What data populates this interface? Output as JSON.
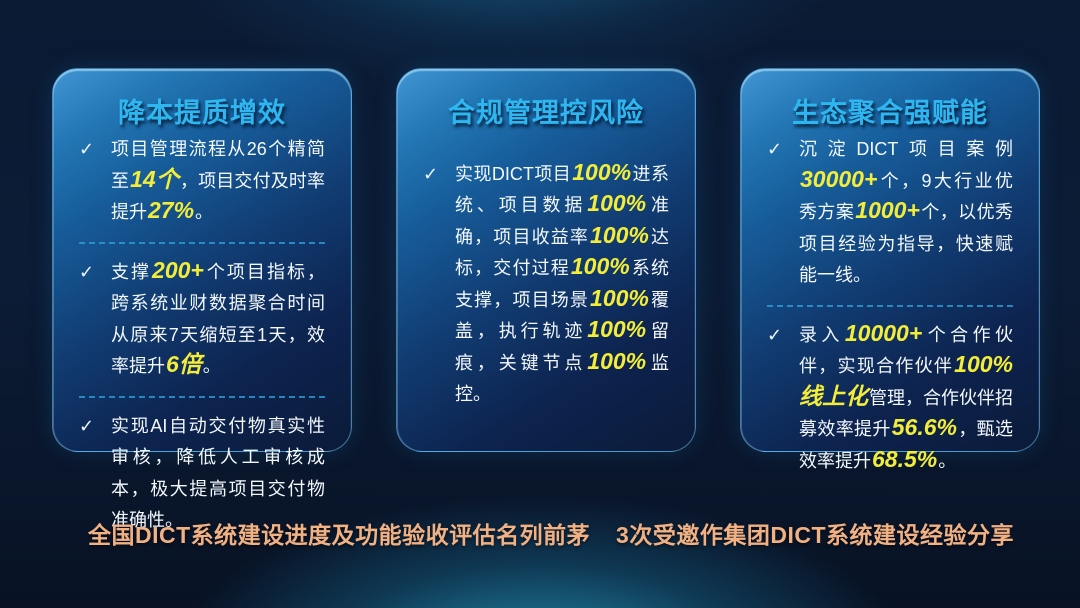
{
  "colors": {
    "title_cyan": "#2eb6f0",
    "highlight_yellow": "#f3ed3a",
    "footer_orange": "#f2b183",
    "divider_cyan": "#2f9fd6",
    "body_text": "#f3f8fd",
    "card_border": "#79c3ef",
    "background_navy": "#0b1a33",
    "glow_teal": "#28accd"
  },
  "icons": {
    "check": "✓"
  },
  "cards": [
    {
      "title": "降本提质增效",
      "bullets": [
        {
          "segments": [
            {
              "t": "项目管理流程从26个精简至",
              "hl": false
            },
            {
              "t": "14个",
              "hl": true
            },
            {
              "t": "，项目交付及时率提升",
              "hl": false
            },
            {
              "t": "27%",
              "hl": true
            },
            {
              "t": "。",
              "hl": false
            }
          ]
        },
        {
          "segments": [
            {
              "t": "支撑",
              "hl": false
            },
            {
              "t": "200+",
              "hl": true
            },
            {
              "t": "个项目指标，跨系统业财数据聚合时间从原来7天缩短至1天，效率提升",
              "hl": false
            },
            {
              "t": "6倍",
              "hl": true
            },
            {
              "t": "。",
              "hl": false
            }
          ]
        },
        {
          "segments": [
            {
              "t": "实现AI自动交付物真实性审核，降低人工审核成本，极大提高项目交付物准确性。",
              "hl": false
            }
          ]
        }
      ]
    },
    {
      "title": "合规管理控风险",
      "bullets": [
        {
          "segments": [
            {
              "t": "实现DICT项目",
              "hl": false
            },
            {
              "t": "100%",
              "hl": true
            },
            {
              "t": "进系统、项目数据",
              "hl": false
            },
            {
              "t": "100%",
              "hl": true
            },
            {
              "t": "准确，项目收益率",
              "hl": false
            },
            {
              "t": "100%",
              "hl": true
            },
            {
              "t": "达标，交付过程",
              "hl": false
            },
            {
              "t": "100%",
              "hl": true
            },
            {
              "t": "系统支撑，项目场景",
              "hl": false
            },
            {
              "t": "100%",
              "hl": true
            },
            {
              "t": "覆盖，执行轨迹",
              "hl": false
            },
            {
              "t": "100%",
              "hl": true
            },
            {
              "t": "留痕，关键节点",
              "hl": false
            },
            {
              "t": "100%",
              "hl": true
            },
            {
              "t": "监控。",
              "hl": false
            }
          ]
        }
      ]
    },
    {
      "title": "生态聚合强赋能",
      "bullets": [
        {
          "segments": [
            {
              "t": "沉淀DICT项目案例",
              "hl": false
            },
            {
              "t": "30000+",
              "hl": true
            },
            {
              "t": "个，9大行业优秀方案",
              "hl": false
            },
            {
              "t": "1000+",
              "hl": true
            },
            {
              "t": "个，以优秀项目经验为指导，快速赋能一线。",
              "hl": false
            }
          ]
        },
        {
          "segments": [
            {
              "t": "录入",
              "hl": false
            },
            {
              "t": "10000+",
              "hl": true
            },
            {
              "t": "个合作伙伴，实现合作伙伴",
              "hl": false
            },
            {
              "t": "100%线上化",
              "hl": true
            },
            {
              "t": "管理，合作伙伴招募效率提升",
              "hl": false
            },
            {
              "t": "56.6%",
              "hl": true
            },
            {
              "t": "，甄选效率提升",
              "hl": false
            },
            {
              "t": "68.5%",
              "hl": true
            },
            {
              "t": "。",
              "hl": false
            }
          ]
        }
      ]
    }
  ],
  "footers": {
    "left": "全国DICT系统建设进度及功能验收评估名列前茅",
    "right": "3次受邀作集团DICT系统建设经验分享"
  }
}
